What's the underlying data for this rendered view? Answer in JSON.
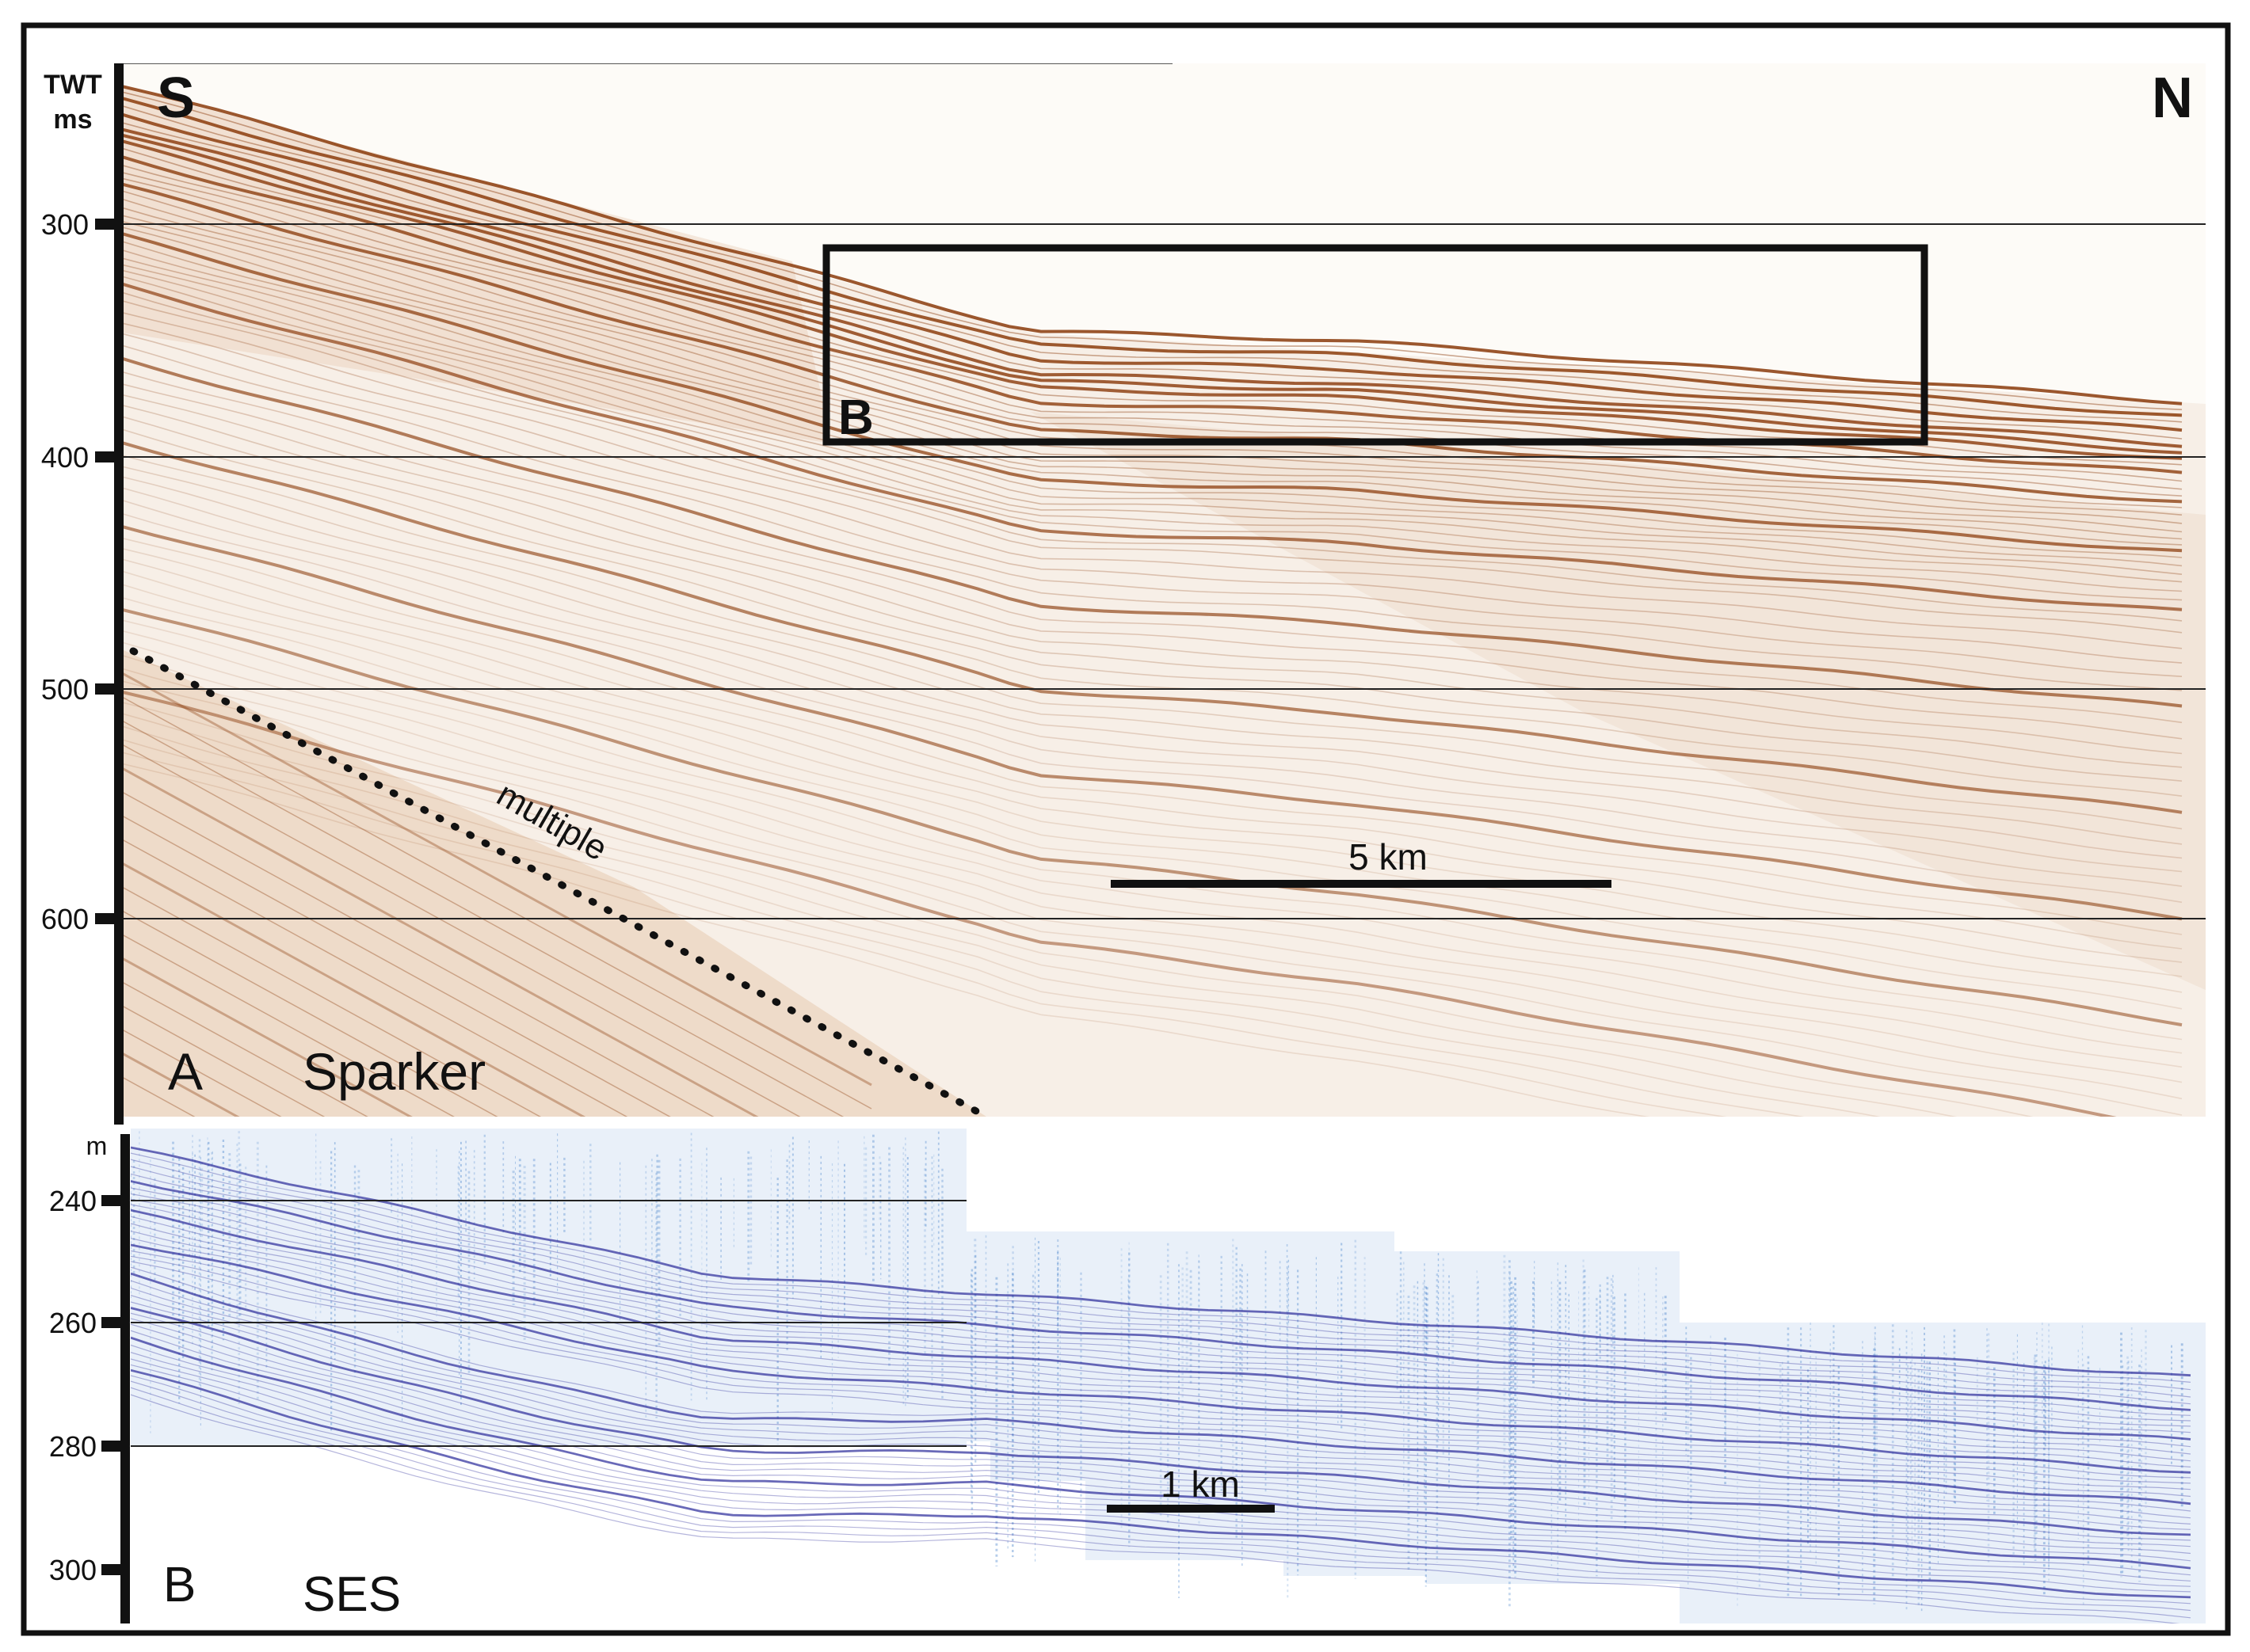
{
  "panel_a": {
    "axis_title_line1": "TWT",
    "axis_title_line2": "ms",
    "ticks": [
      "300",
      "400",
      "500",
      "600"
    ],
    "tick_values": [
      300,
      400,
      500,
      600
    ],
    "direction_left": "S",
    "direction_right": "N",
    "inset_label": "B",
    "multiple_label": "multiple",
    "scale_bar_label": "5 km",
    "panel_letter": "A",
    "panel_name": "Sparker",
    "reflector_color": "#8a3a0a"
  },
  "panel_b": {
    "axis_title": "m",
    "ticks": [
      "240",
      "260",
      "280",
      "300"
    ],
    "tick_values": [
      240,
      260,
      280,
      300
    ],
    "scale_bar_label": "1 km",
    "panel_letter": "B",
    "panel_name": "SES",
    "reflector_color": "#2a2a9a",
    "noise_color": "#3a7ac8"
  }
}
